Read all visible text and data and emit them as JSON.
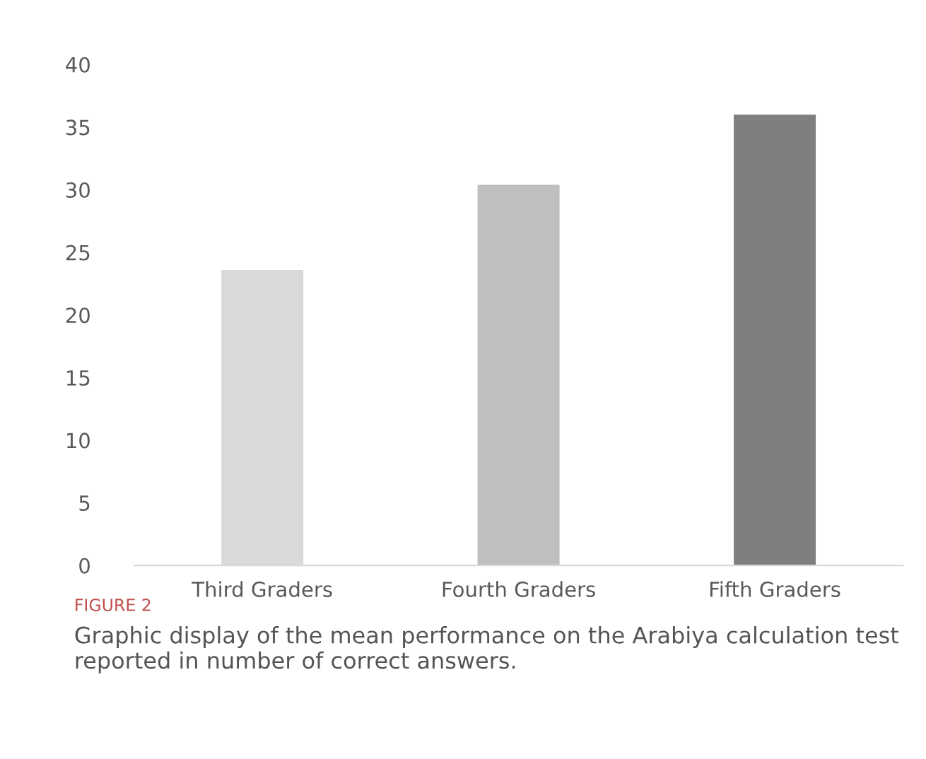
{
  "chart_data": {
    "type": "bar",
    "title": "FIGURE 2",
    "subtitle": "Graphic display of the mean performance on the Arabiya calculation test reported in number of correct answers.",
    "categories": [
      "Third Graders",
      "Fourth Graders",
      "Fifth Graders"
    ],
    "values": [
      23.6,
      30.4,
      36.0
    ],
    "colors": [
      "#d9d9d9",
      "#bfbfbf",
      "#7f7f7f"
    ],
    "ylim": [
      0,
      40
    ],
    "yticks": [
      0,
      5,
      10,
      15,
      20,
      25,
      30,
      35,
      40
    ],
    "grid": false,
    "legend": false
  }
}
